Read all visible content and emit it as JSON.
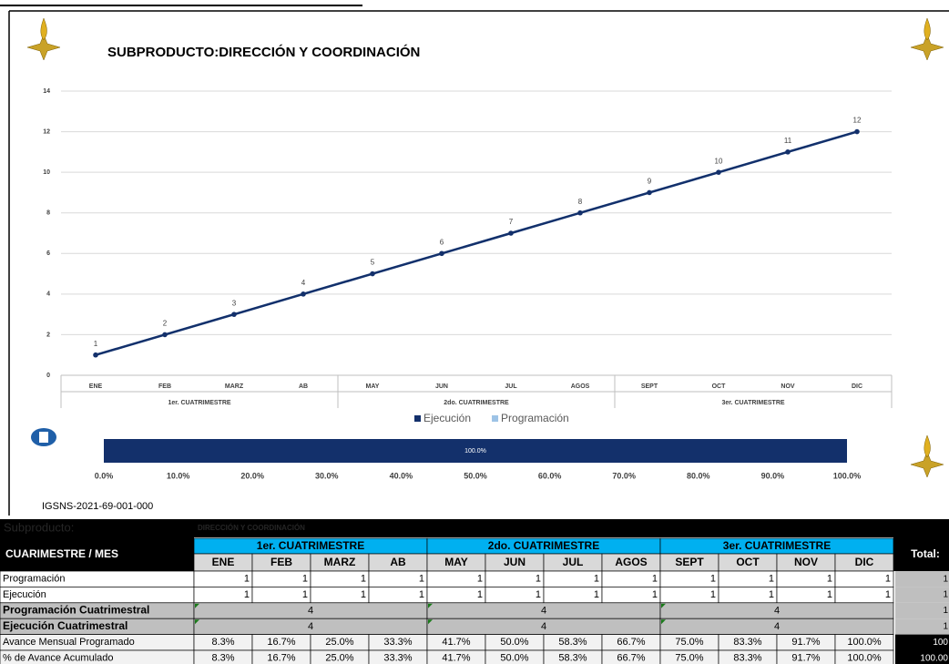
{
  "chart_data": [
    {
      "type": "line",
      "title": "SUBPRODUCTO:DIRECCIÓN Y COORDINACIÓN",
      "categories": [
        "ENE",
        "FEB",
        "MARZ",
        "AB",
        "MAY",
        "JUN",
        "JUL",
        "AGOS",
        "SEPT",
        "OCT",
        "NOV",
        "DIC"
      ],
      "groups": [
        "1er. CUATRIMESTRE",
        "2do. CUATRIMESTRE",
        "3er. CUATRIMESTRE"
      ],
      "series": [
        {
          "name": "Ejecución",
          "color": "#13306b",
          "values": [
            1,
            2,
            3,
            4,
            5,
            6,
            7,
            8,
            9,
            10,
            11,
            12
          ]
        },
        {
          "name": "Programación",
          "color": "#9dc3e6",
          "values": [
            1,
            2,
            3,
            4,
            5,
            6,
            7,
            8,
            9,
            10,
            11,
            12
          ]
        }
      ],
      "ylim": [
        0,
        14
      ],
      "yticks": [
        0,
        2,
        4,
        6,
        8,
        10,
        12,
        14
      ],
      "grid": true,
      "legend": "bottom"
    },
    {
      "type": "bar",
      "values": [
        100
      ],
      "value_labels": [
        "100.0%"
      ],
      "color": "#13306b",
      "xlim": [
        0,
        100
      ],
      "xticks": [
        {
          "value": 0,
          "label": "0.0%"
        },
        {
          "value": 10,
          "label": "10.0%"
        },
        {
          "value": 20,
          "label": "20.0%"
        },
        {
          "value": 30,
          "label": "30.0%"
        },
        {
          "value": 40,
          "label": "40.0%"
        },
        {
          "value": 50,
          "label": "50.0%"
        },
        {
          "value": 60,
          "label": "60.0%"
        },
        {
          "value": 70,
          "label": "70.0%"
        },
        {
          "value": 80,
          "label": "80.0%"
        },
        {
          "value": 90,
          "label": "90.0%"
        },
        {
          "value": 100,
          "label": "100.0%"
        }
      ]
    }
  ],
  "code": "IGSNS-2021-69-001-000",
  "table": {
    "subproduct_label": "Subproducto:",
    "subproduct": "DIRECCIÓN Y COORDINACIÓN",
    "corner": "CUARIMESTRE / MES",
    "total": "Total:",
    "rows": [
      {
        "label": "Programación",
        "cells": [
          1,
          1,
          1,
          1,
          1,
          1,
          1,
          1,
          1,
          1,
          1,
          1
        ],
        "total": "1"
      },
      {
        "label": "Ejecución",
        "cells": [
          1,
          1,
          1,
          1,
          1,
          1,
          1,
          1,
          1,
          1,
          1,
          1
        ],
        "total": "1"
      },
      {
        "label": "Programación Cuatrimestral",
        "cells": [
          4,
          4,
          4
        ],
        "total": "1"
      },
      {
        "label": "Ejecución Cuatrimestral",
        "cells": [
          4,
          4,
          4
        ],
        "total": "1"
      },
      {
        "label": "Avance Mensual Programado",
        "cells": [
          "8.3%",
          "16.7%",
          "25.0%",
          "33.3%",
          "41.7%",
          "50.0%",
          "58.3%",
          "66.7%",
          "75.0%",
          "83.3%",
          "91.7%",
          "100.0%"
        ],
        "total": "100"
      },
      {
        "label": "% de Avance Acumulado",
        "cells": [
          "8.3%",
          "16.7%",
          "25.0%",
          "33.3%",
          "41.7%",
          "50.0%",
          "58.3%",
          "66.7%",
          "75.0%",
          "83.3%",
          "91.7%",
          "100.0%"
        ],
        "total": "100.00"
      }
    ]
  }
}
